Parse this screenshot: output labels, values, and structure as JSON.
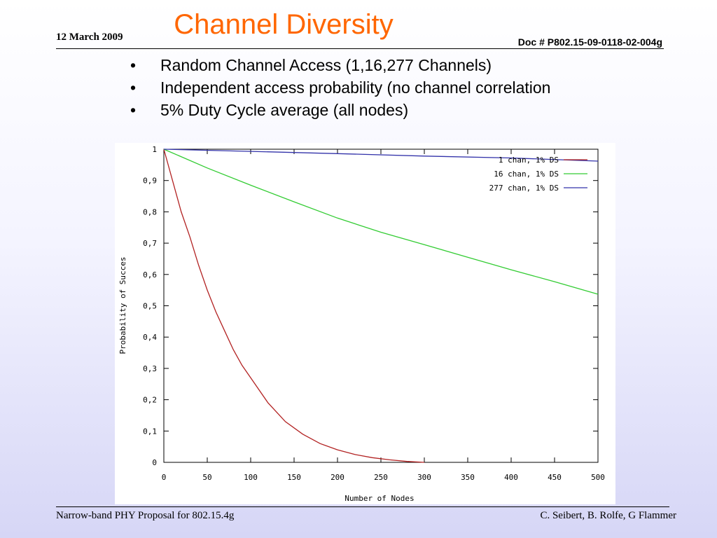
{
  "slide": {
    "title": "Channel Diversity",
    "date": "12 March 2009",
    "doc": "Doc # P802.15-09-0118-02-004g",
    "bullet_marker": "•",
    "bullets": [
      "Random Channel Access (1,16,277 Channels)",
      "Independent access probability (no channel correlation",
      "5% Duty Cycle average (all nodes)"
    ],
    "footer_left": "Narrow-band PHY Proposal for 802.15.4g",
    "footer_right": "C. Seibert, B. Rolfe, G Flammer"
  },
  "chart_data": {
    "type": "line",
    "xlabel": "Number of Nodes",
    "ylabel": "Probability of Succes",
    "xlim": [
      0,
      500
    ],
    "ylim": [
      0,
      1
    ],
    "x_ticks": [
      "0",
      "50",
      "100",
      "150",
      "200",
      "250",
      "300",
      "350",
      "400",
      "450",
      "500"
    ],
    "y_ticks": [
      "0",
      "0.1",
      "0.2",
      "0.3",
      "0.4",
      "0.5",
      "0.6",
      "0.7",
      "0.8",
      "0.9",
      "1"
    ],
    "legend_position": "top-right",
    "grid": false,
    "series": [
      {
        "name": "1 chan, 1% DS",
        "color": "#b22222",
        "x": [
          0,
          10,
          20,
          30,
          40,
          50,
          60,
          70,
          80,
          90,
          100,
          120,
          140,
          160,
          180,
          200,
          220,
          240,
          260,
          280,
          300
        ],
        "y": [
          1,
          0.9,
          0.8,
          0.72,
          0.63,
          0.55,
          0.48,
          0.42,
          0.36,
          0.31,
          0.27,
          0.19,
          0.13,
          0.09,
          0.06,
          0.04,
          0.025,
          0.015,
          0.008,
          0.003,
          0
        ]
      },
      {
        "name": "16 chan, 1% DS",
        "color": "#33cc33",
        "x": [
          0,
          50,
          100,
          150,
          200,
          250,
          300,
          350,
          400,
          450,
          500
        ],
        "y": [
          1,
          0.94,
          0.885,
          0.832,
          0.78,
          0.735,
          0.695,
          0.655,
          0.615,
          0.577,
          0.537
        ]
      },
      {
        "name": "277 chan, 1% DS",
        "color": "#3333aa",
        "x": [
          0,
          100,
          200,
          300,
          400,
          500
        ],
        "y": [
          1,
          0.993,
          0.986,
          0.978,
          0.972,
          0.962
        ]
      }
    ]
  }
}
